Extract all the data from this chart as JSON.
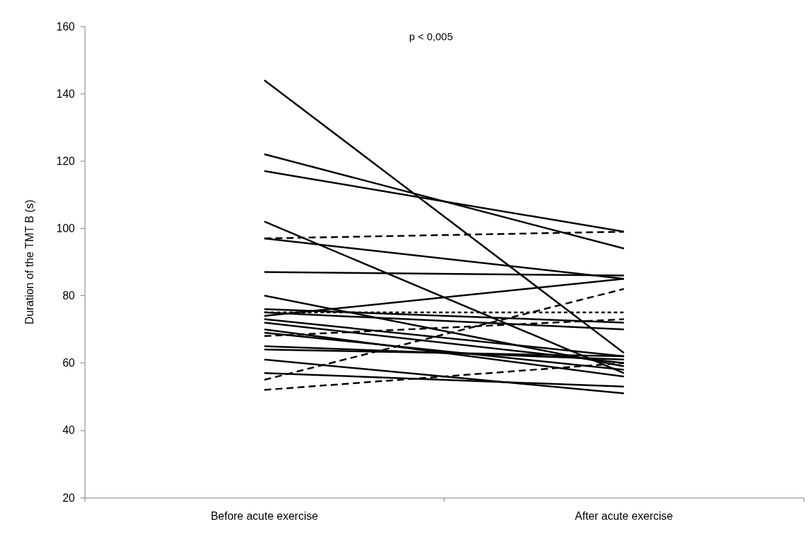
{
  "chart_data": {
    "type": "line",
    "ylabel": "Duration of the TMT B (s)",
    "categories": [
      "Before acute exercise",
      "After acute exercise"
    ],
    "ylim": [
      20,
      160
    ],
    "yticks": [
      20,
      40,
      60,
      80,
      100,
      120,
      140,
      160
    ],
    "grid": false,
    "marker": "none",
    "annotations": [
      "p < 0,005"
    ],
    "series": [
      {
        "values": [
          144,
          63
        ],
        "color": "#000000",
        "line_style": "solid"
      },
      {
        "values": [
          122,
          94
        ],
        "color": "#000000",
        "line_style": "solid"
      },
      {
        "values": [
          117,
          99
        ],
        "color": "#000000",
        "line_style": "solid"
      },
      {
        "values": [
          102,
          57
        ],
        "color": "#000000",
        "line_style": "solid"
      },
      {
        "values": [
          97,
          99
        ],
        "color": "#000000",
        "line_style": "dashed"
      },
      {
        "values": [
          97,
          85
        ],
        "color": "#000000",
        "line_style": "solid"
      },
      {
        "values": [
          87,
          86
        ],
        "color": "#000000",
        "line_style": "solid"
      },
      {
        "values": [
          80,
          59
        ],
        "color": "#000000",
        "line_style": "solid"
      },
      {
        "values": [
          76,
          72
        ],
        "color": "#000000",
        "line_style": "solid"
      },
      {
        "values": [
          75,
          75
        ],
        "color": "#000000",
        "line_style": "dotted"
      },
      {
        "values": [
          75,
          70
        ],
        "color": "#000000",
        "line_style": "solid"
      },
      {
        "values": [
          74,
          85
        ],
        "color": "#000000",
        "line_style": "solid"
      },
      {
        "values": [
          73,
          62
        ],
        "color": "#000000",
        "line_style": "solid"
      },
      {
        "values": [
          72,
          60
        ],
        "color": "#000000",
        "line_style": "solid"
      },
      {
        "values": [
          70,
          56
        ],
        "color": "#000000",
        "line_style": "solid"
      },
      {
        "values": [
          69,
          58
        ],
        "color": "#000000",
        "line_style": "solid"
      },
      {
        "values": [
          68,
          73
        ],
        "color": "#000000",
        "line_style": "dashed"
      },
      {
        "values": [
          65,
          61
        ],
        "color": "#000000",
        "line_style": "solid"
      },
      {
        "values": [
          64,
          62
        ],
        "color": "#000000",
        "line_style": "solid"
      },
      {
        "values": [
          61,
          51
        ],
        "color": "#000000",
        "line_style": "solid"
      },
      {
        "values": [
          57,
          53
        ],
        "color": "#000000",
        "line_style": "solid"
      },
      {
        "values": [
          55,
          82
        ],
        "color": "#000000",
        "line_style": "dashed"
      },
      {
        "values": [
          52,
          60
        ],
        "color": "#000000",
        "line_style": "dashed"
      }
    ]
  }
}
